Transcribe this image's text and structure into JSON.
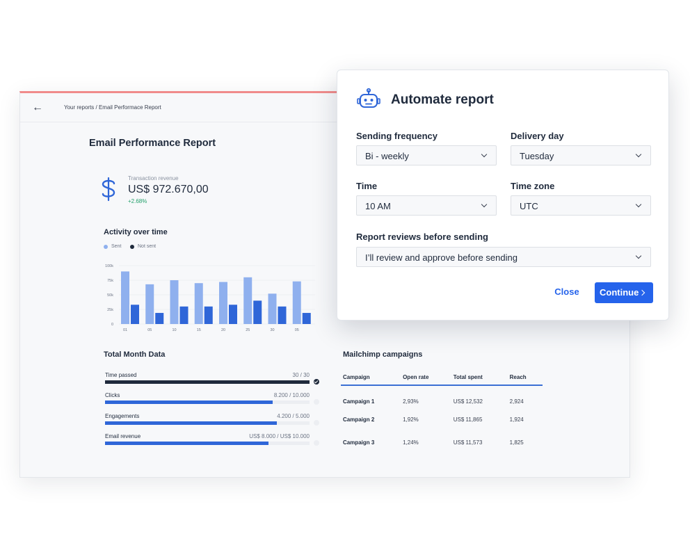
{
  "breadcrumb": "Your reports / Email Performace Report",
  "report_title": "Email Performance Report",
  "revenue": {
    "label": "Transaction revenue",
    "value": "US$ 972.670,00",
    "change": "+2.68%"
  },
  "activity": {
    "title": "Activity over time",
    "legend": [
      {
        "name": "Sent",
        "color": "#8fb0ee"
      },
      {
        "name": "Not sent",
        "color": "#1f2a3c"
      }
    ]
  },
  "chart_data": {
    "type": "bar",
    "title": "Activity over time",
    "categories": [
      "01",
      "05",
      "10",
      "15",
      "20",
      "25",
      "30",
      "05"
    ],
    "yticks": [
      "100k",
      "75k",
      "50k",
      "25k",
      "0"
    ],
    "ylim": [
      0,
      100000
    ],
    "legend_position": "top-left",
    "grid": true,
    "series": [
      {
        "name": "Sent",
        "color": "#8fb0ee",
        "values": [
          90000,
          68000,
          75000,
          70000,
          72000,
          80000,
          52000,
          73000
        ]
      },
      {
        "name": "Not sent",
        "color": "#2f66d8",
        "values": [
          33000,
          19000,
          30000,
          30000,
          33000,
          40000,
          30000,
          19000
        ]
      }
    ]
  },
  "total_month": {
    "title": "Total Month Data",
    "metrics": [
      {
        "label": "Time passed",
        "value": "30 / 30",
        "fraction": 1.0,
        "color": "#1f2a3c",
        "done": true
      },
      {
        "label": "Clicks",
        "value": "8.200 / 10.000",
        "fraction": 0.82,
        "color": "#2f66d8",
        "done": false
      },
      {
        "label": "Engagements",
        "value": "4.200 / 5.000",
        "fraction": 0.84,
        "color": "#2f66d8",
        "done": false
      },
      {
        "label": "Email revenue",
        "value": "US$ 8.000 / US$ 10.000",
        "fraction": 0.8,
        "color": "#2f66d8",
        "done": false
      }
    ]
  },
  "mailchimp": {
    "title": "Mailchimp campaigns",
    "headers": [
      "Campaign",
      "Open rate",
      "Total spent",
      "Reach"
    ],
    "rows": [
      [
        "Campaign 1",
        "2,93%",
        "US$ 12,532",
        "2,924"
      ],
      [
        "Campaign 2",
        "1,92%",
        "US$ 11,865",
        "1,924"
      ],
      [
        "Campaign 3",
        "1,24%",
        "US$ 11,573",
        "1,825"
      ]
    ]
  },
  "modal": {
    "title": "Automate report",
    "sending_frequency": {
      "label": "Sending frequency",
      "value": "Bi - weekly"
    },
    "delivery_day": {
      "label": "Delivery day",
      "value": "Tuesday"
    },
    "time": {
      "label": "Time",
      "value": "10 AM"
    },
    "time_zone": {
      "label": "Time zone",
      "value": "UTC"
    },
    "review": {
      "label": "Report reviews before sending",
      "value": "I’ll review and approve before sending"
    },
    "close_label": "Close",
    "continue_label": "Continue"
  },
  "colors": {
    "accent": "#2563eb",
    "positive": "#23a06b",
    "window_top_border": "#f08b8b"
  }
}
